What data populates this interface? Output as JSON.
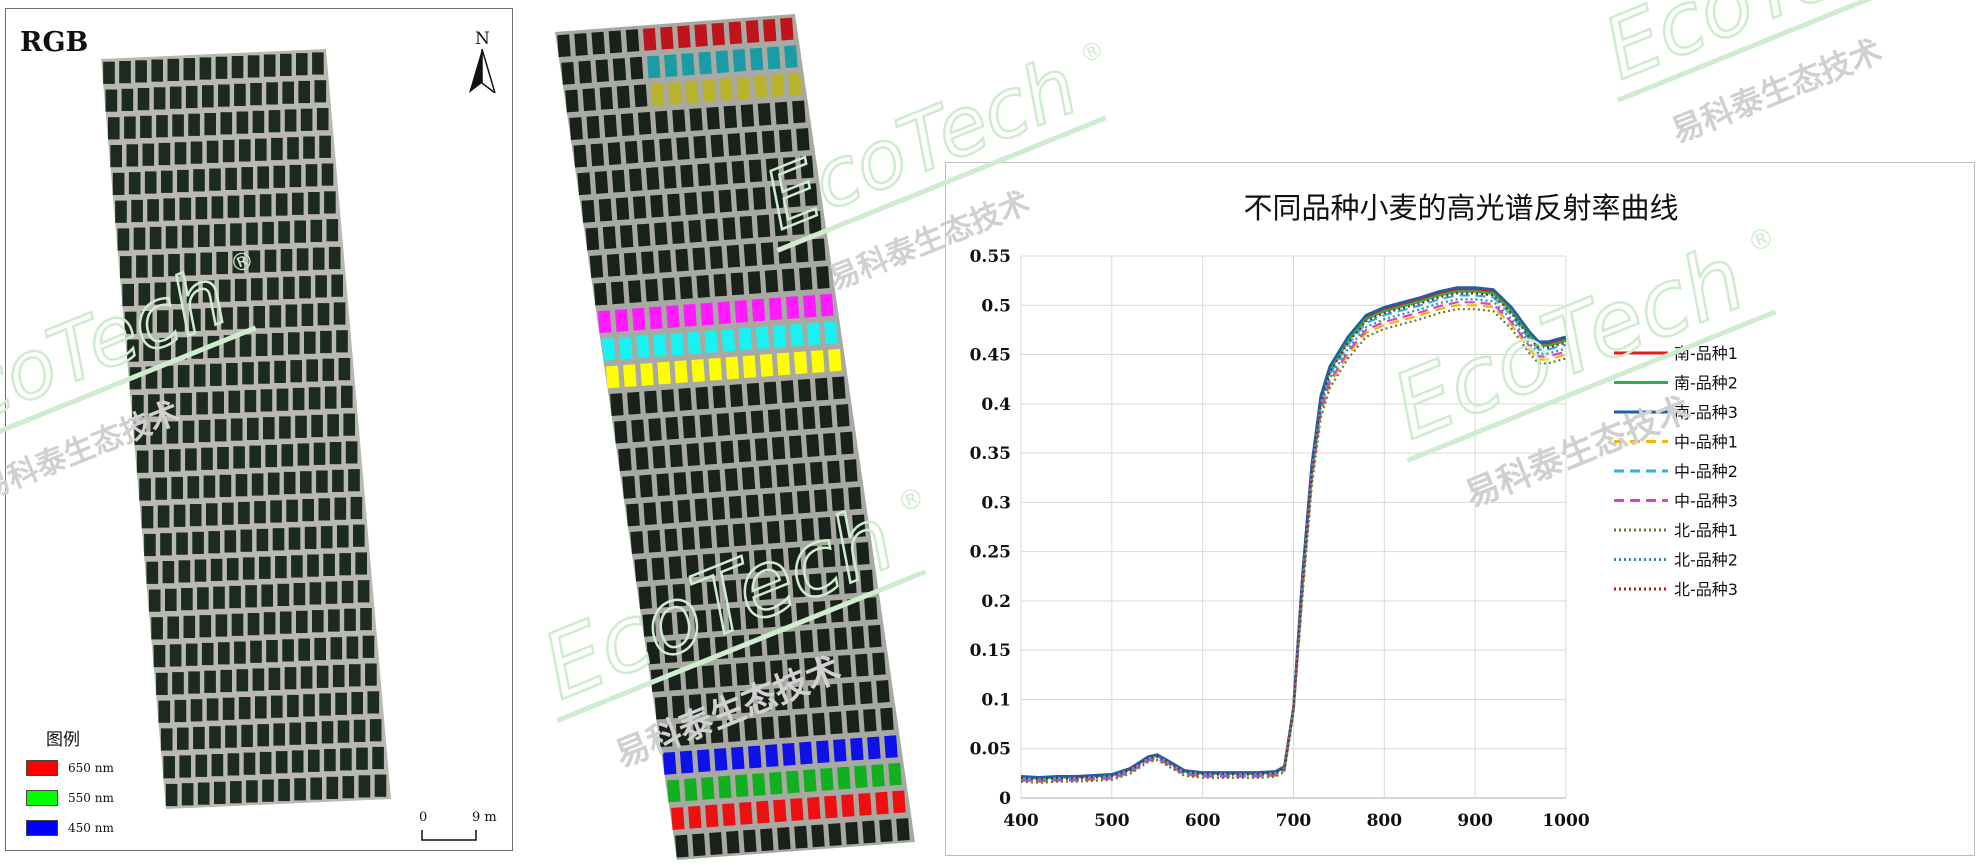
{
  "rgb_panel": {
    "title": "RGB",
    "north": "N",
    "legend_title": "图例",
    "legend": [
      {
        "label": "650 nm",
        "color": "#ff0000"
      },
      {
        "label": "550 nm",
        "color": "#00ff00"
      },
      {
        "label": "450 nm",
        "color": "#0000ff"
      }
    ],
    "scale_start": "0",
    "scale_end": "9 m"
  },
  "plot_groups": [
    {
      "color": "#c0141c",
      "name": "red"
    },
    {
      "color": "#1a9ba6",
      "name": "teal"
    },
    {
      "color": "#b7b32a",
      "name": "olive"
    },
    {
      "color": "#ff1aff",
      "name": "magenta"
    },
    {
      "color": "#18f2f2",
      "name": "cyan"
    },
    {
      "color": "#ffff00",
      "name": "yellow"
    },
    {
      "color": "#1010e8",
      "name": "blue"
    },
    {
      "color": "#10b020",
      "name": "green"
    },
    {
      "color": "#ee1010",
      "name": "red-bottom"
    }
  ],
  "chart_data": {
    "type": "line",
    "title": "不同品种小麦的高光谱反射率曲线",
    "xlabel": "",
    "ylabel": "",
    "xlim": [
      400,
      1000
    ],
    "ylim": [
      0,
      0.55
    ],
    "x_ticks": [
      "400",
      "500",
      "600",
      "700",
      "800",
      "900",
      "1000"
    ],
    "y_ticks": [
      "0",
      "0.05",
      "0.1",
      "0.15",
      "0.2",
      "0.25",
      "0.3",
      "0.35",
      "0.4",
      "0.45",
      "0.5",
      "0.55"
    ],
    "grid": true,
    "legend_position": "right",
    "x": [
      400,
      420,
      440,
      460,
      480,
      500,
      520,
      540,
      550,
      560,
      580,
      600,
      620,
      640,
      660,
      680,
      690,
      700,
      710,
      720,
      730,
      740,
      750,
      760,
      780,
      800,
      820,
      840,
      860,
      880,
      900,
      920,
      940,
      960,
      970,
      980,
      1000
    ],
    "base_values": [
      0.02,
      0.019,
      0.02,
      0.02,
      0.021,
      0.022,
      0.028,
      0.04,
      0.042,
      0.037,
      0.026,
      0.024,
      0.024,
      0.024,
      0.024,
      0.025,
      0.03,
      0.09,
      0.22,
      0.33,
      0.4,
      0.43,
      0.445,
      0.46,
      0.482,
      0.49,
      0.495,
      0.5,
      0.506,
      0.51,
      0.51,
      0.508,
      0.49,
      0.465,
      0.455,
      0.455,
      0.46
    ],
    "series": [
      {
        "name": "南-品种1",
        "color": "#e31a1c",
        "dash": "solid",
        "offset": 0.006
      },
      {
        "name": "南-品种2",
        "color": "#2bb04a",
        "dash": "solid",
        "offset": 0.004
      },
      {
        "name": "南-品种3",
        "color": "#1f5fa8",
        "dash": "solid",
        "offset": 0.008
      },
      {
        "name": "中-品种1",
        "color": "#f5b400",
        "dash": "dashed",
        "offset": -0.01
      },
      {
        "name": "中-品种2",
        "color": "#2cb2e6",
        "dash": "dashed",
        "offset": 0.0
      },
      {
        "name": "中-品种3",
        "color": "#e040d0",
        "dash": "dashed",
        "offset": -0.007
      },
      {
        "name": "北-品种1",
        "color": "#6b7a2b",
        "dash": "dotted",
        "offset": -0.014
      },
      {
        "name": "北-品种2",
        "color": "#2b8fb0",
        "dash": "dotted",
        "offset": -0.004
      },
      {
        "name": "北-品种3",
        "color": "#9a1f1f",
        "dash": "dotted",
        "offset": 0.002
      }
    ]
  },
  "watermark_texts": [
    "EcoTech",
    "易科泰生态技术",
    "®"
  ]
}
